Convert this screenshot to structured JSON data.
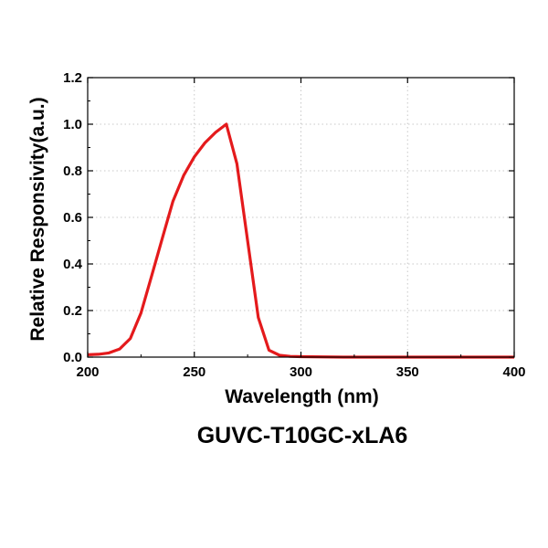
{
  "chart_data": {
    "type": "line",
    "title": "",
    "caption": "GUVC-T10GC-xLA6",
    "xlabel": "Wavelength (nm)",
    "ylabel": "Relative Responsivity(a.u.)",
    "xlim": [
      200,
      400
    ],
    "ylim": [
      0,
      1.2
    ],
    "xticks": [
      200,
      250,
      300,
      350,
      400
    ],
    "yticks": [
      0.0,
      0.2,
      0.4,
      0.6,
      0.8,
      1.0,
      1.2
    ],
    "xtick_labels": [
      "200",
      "250",
      "300",
      "350",
      "400"
    ],
    "ytick_labels": [
      "0.0",
      "0.2",
      "0.4",
      "0.6",
      "0.8",
      "1.0",
      "1.2"
    ],
    "grid": true,
    "legend": "none",
    "series": [
      {
        "name": "GUVC-T10GC-xLA6",
        "color": "#e41a1c",
        "x": [
          200,
          205,
          210,
          215,
          220,
          225,
          230,
          235,
          240,
          245,
          250,
          255,
          260,
          265,
          270,
          275,
          280,
          285,
          290,
          295,
          300,
          320,
          350,
          400
        ],
        "y": [
          0.01,
          0.012,
          0.018,
          0.035,
          0.08,
          0.19,
          0.35,
          0.51,
          0.67,
          0.78,
          0.86,
          0.92,
          0.965,
          1.0,
          0.83,
          0.5,
          0.17,
          0.03,
          0.008,
          0.003,
          0.002,
          0.0,
          0.0,
          0.0
        ]
      }
    ]
  },
  "colors": {
    "line": "#e41a1c",
    "axis": "#000000",
    "grid": "#c8c8c8"
  }
}
